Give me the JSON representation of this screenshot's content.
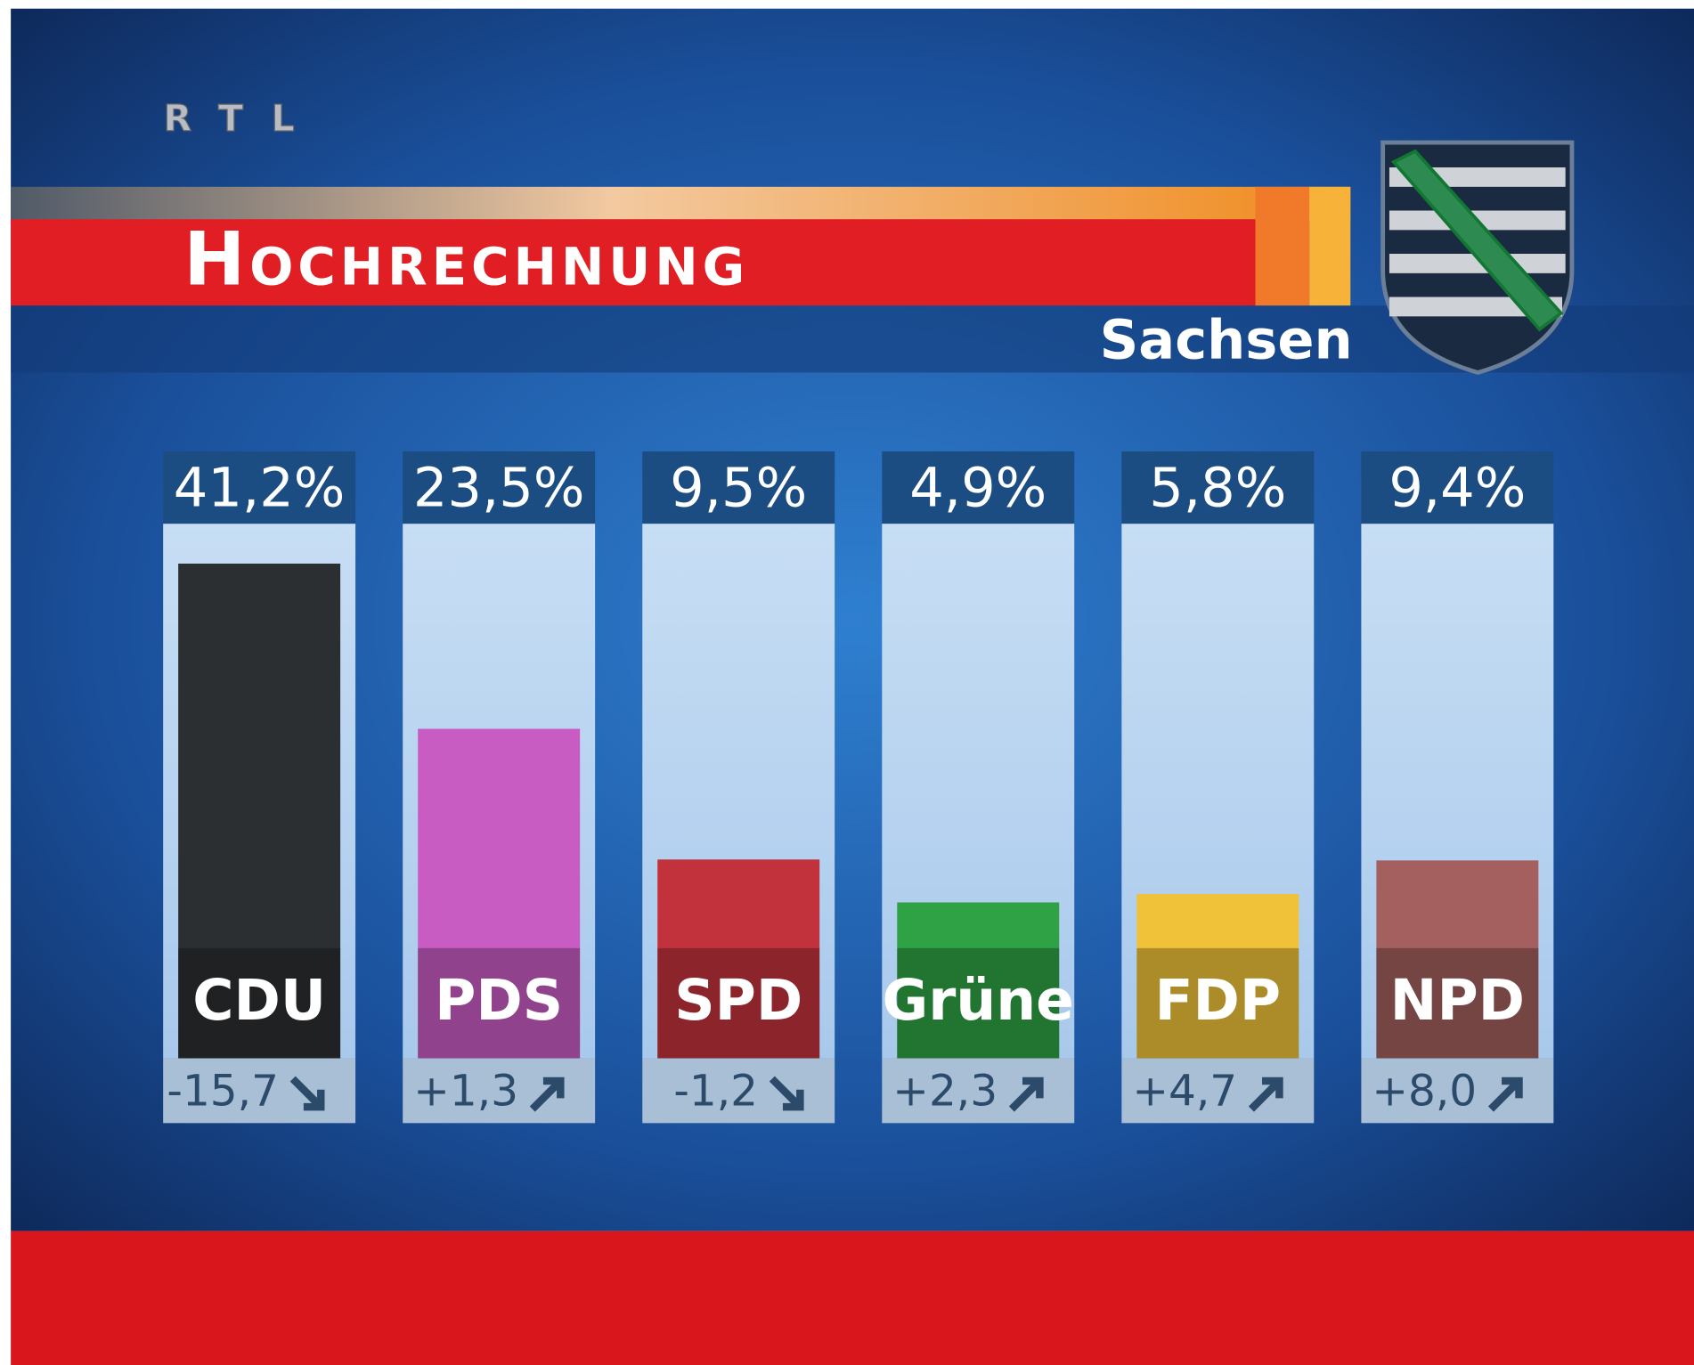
{
  "chart_data": {
    "type": "bar",
    "logo": "RTL",
    "title": "Hochrechnung",
    "subtitle": "Sachsen",
    "categories": [
      "CDU",
      "PDS",
      "SPD",
      "Grüne",
      "FDP",
      "NPD"
    ],
    "values": [
      41.2,
      23.5,
      9.5,
      4.9,
      5.8,
      9.4
    ],
    "value_labels": [
      "41,2%",
      "23,5%",
      "9,5%",
      "4,9%",
      "5,8%",
      "9,4%"
    ],
    "colors": [
      "#2b2f31",
      "#c95cc2",
      "#c2323c",
      "#2ea244",
      "#efc23a",
      "#a3605f"
    ],
    "change": {
      "values": [
        -15.7,
        1.3,
        -1.2,
        2.3,
        4.7,
        8.0
      ],
      "value_labels": [
        "-15,7",
        "+1,3",
        "-1,2",
        "+2,3",
        "+4,7",
        "+8,0"
      ]
    },
    "ylim": [
      0,
      42
    ]
  }
}
